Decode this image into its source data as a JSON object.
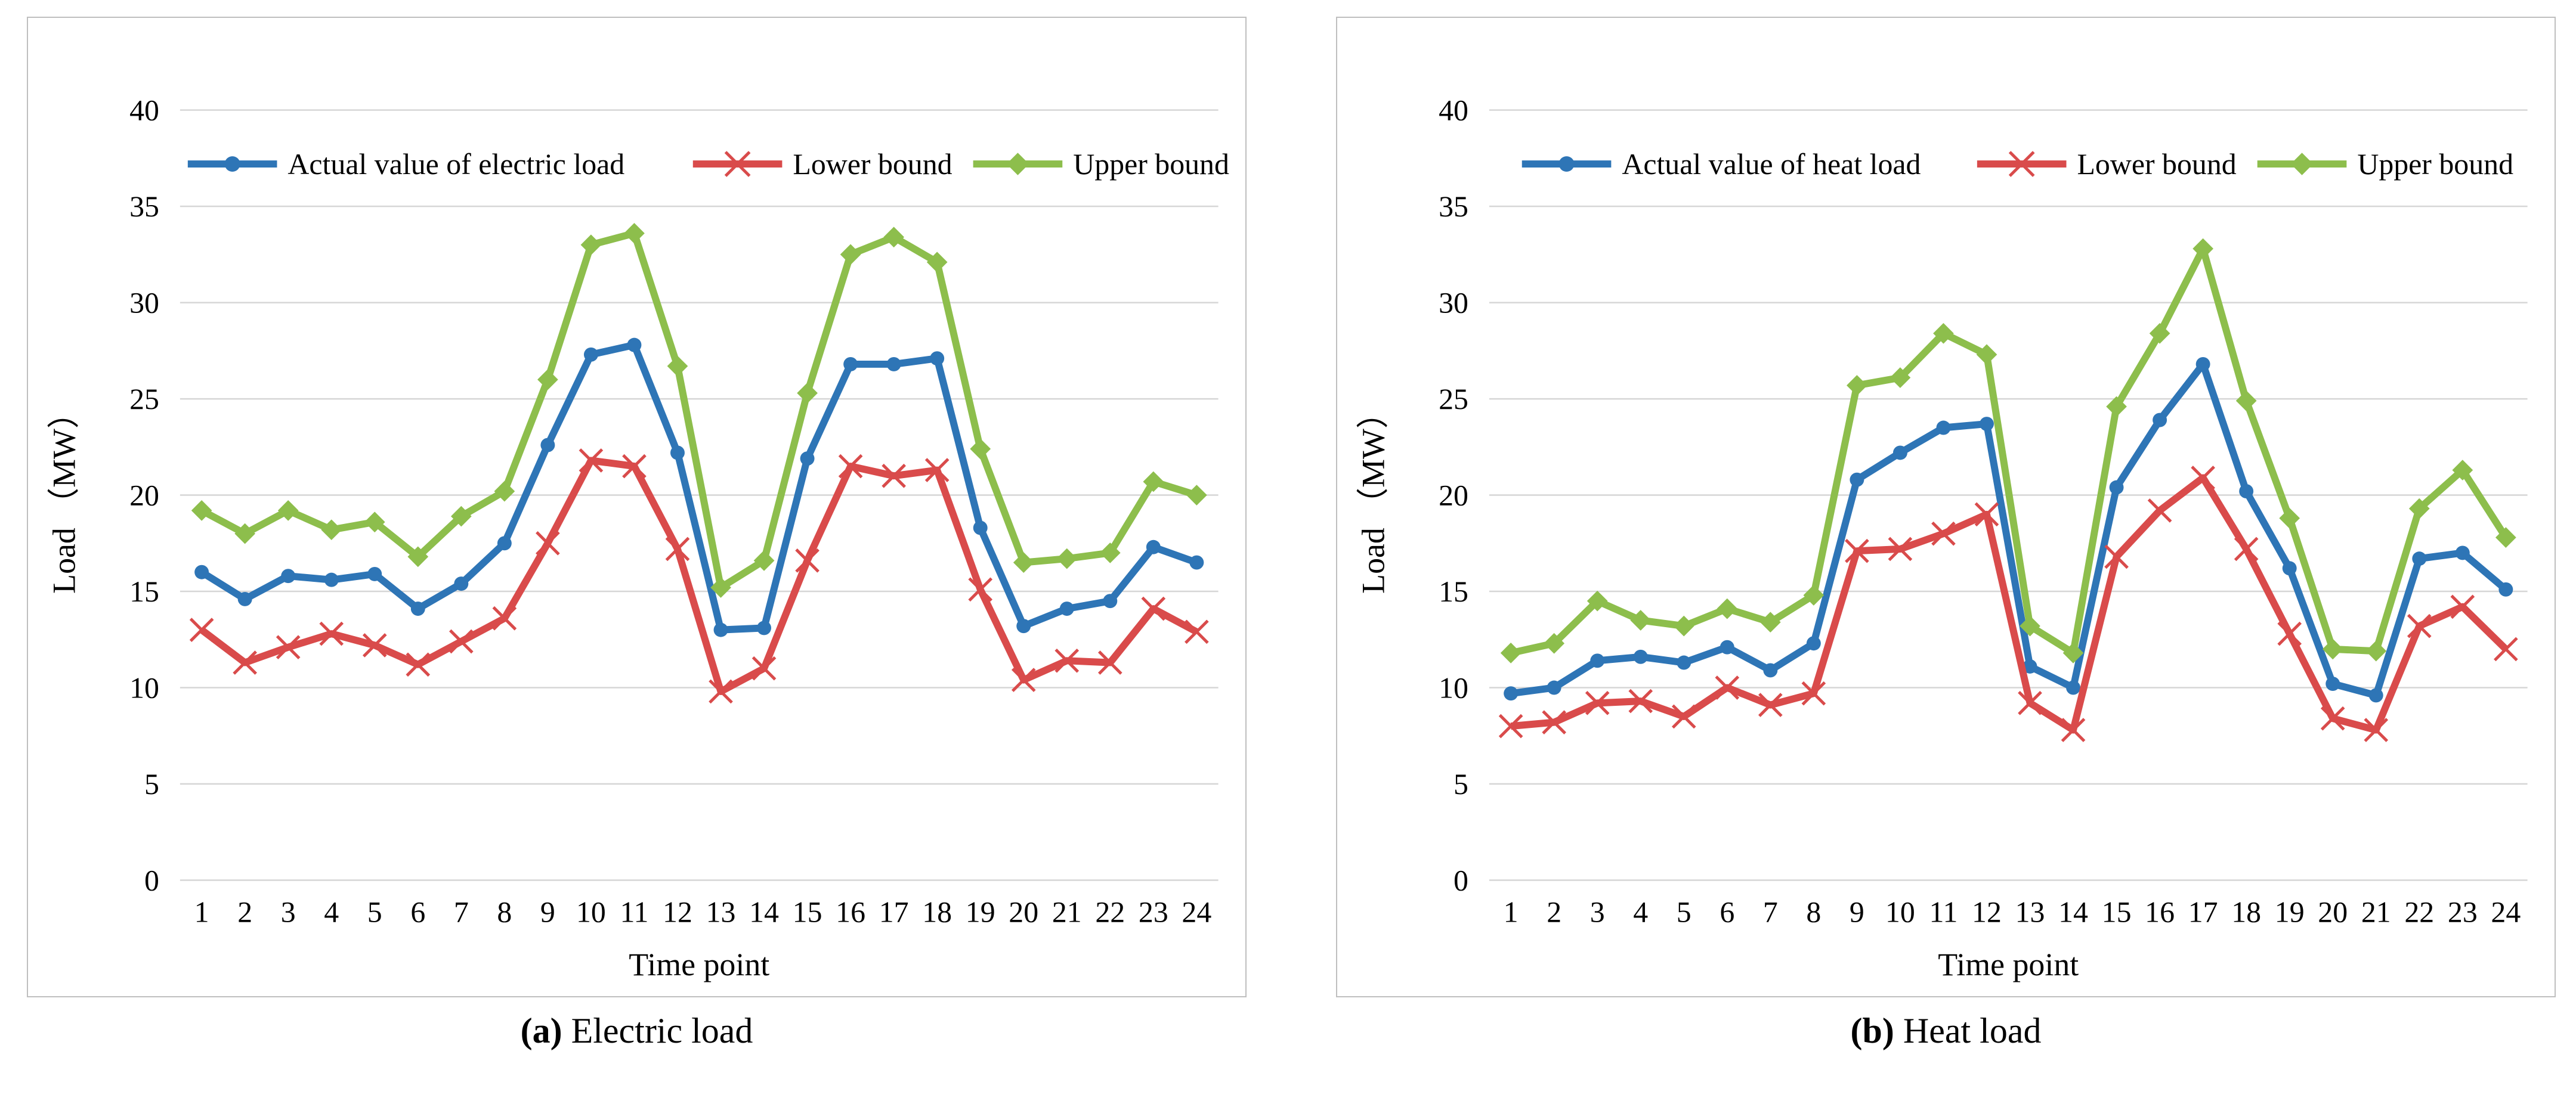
{
  "captions": [
    {
      "label": "(a)",
      "text": "Electric load"
    },
    {
      "label": "(b)",
      "text": "Heat load"
    }
  ],
  "chart_data": [
    {
      "type": "line",
      "title": "",
      "xlabel": "Time point",
      "ylabel": "Load （MW）",
      "ylim": [
        0,
        40
      ],
      "ytick_step": 5,
      "grid": "horizontal",
      "legend_position": "top-inside",
      "categories": [
        1,
        2,
        3,
        4,
        5,
        6,
        7,
        8,
        9,
        10,
        11,
        12,
        13,
        14,
        15,
        16,
        17,
        18,
        19,
        20,
        21,
        22,
        23,
        24
      ],
      "series": [
        {
          "name": "Actual value of electric load",
          "color": "#2E75B6",
          "marker": "circle",
          "values": [
            16.0,
            14.6,
            15.8,
            15.6,
            15.9,
            14.1,
            15.4,
            17.5,
            22.6,
            27.3,
            27.8,
            22.2,
            13.0,
            13.1,
            21.9,
            26.8,
            26.8,
            27.1,
            18.3,
            13.2,
            14.1,
            14.5,
            17.3,
            16.5
          ]
        },
        {
          "name": "Lower bound",
          "color": "#D94B4B",
          "marker": "x",
          "values": [
            13.0,
            11.3,
            12.1,
            12.8,
            12.2,
            11.2,
            12.4,
            13.6,
            17.5,
            21.8,
            21.5,
            17.2,
            9.8,
            11.0,
            16.6,
            21.5,
            21.0,
            21.3,
            15.1,
            10.4,
            11.4,
            11.3,
            14.1,
            12.9
          ]
        },
        {
          "name": "Upper bound",
          "color": "#8DBE4C",
          "marker": "diamond",
          "values": [
            19.2,
            18.0,
            19.2,
            18.2,
            18.6,
            16.8,
            18.9,
            20.2,
            26.0,
            33.0,
            33.6,
            26.7,
            15.2,
            16.6,
            25.3,
            32.5,
            33.4,
            32.1,
            22.4,
            16.5,
            16.7,
            17.0,
            20.7,
            20.0
          ]
        }
      ]
    },
    {
      "type": "line",
      "title": "",
      "xlabel": "Time point",
      "ylabel": "Load （MW）",
      "ylim": [
        0,
        40
      ],
      "ytick_step": 5,
      "grid": "horizontal",
      "legend_position": "top-inside",
      "categories": [
        1,
        2,
        3,
        4,
        5,
        6,
        7,
        8,
        9,
        10,
        11,
        12,
        13,
        14,
        15,
        16,
        17,
        18,
        19,
        20,
        21,
        22,
        23,
        24
      ],
      "series": [
        {
          "name": "Actual value of heat load",
          "color": "#2E75B6",
          "marker": "circle",
          "values": [
            9.7,
            10.0,
            11.4,
            11.6,
            11.3,
            12.1,
            10.9,
            12.3,
            20.8,
            22.2,
            23.5,
            23.7,
            11.1,
            10.0,
            20.4,
            23.9,
            26.8,
            20.2,
            16.2,
            10.2,
            9.6,
            16.7,
            17.0,
            15.1
          ]
        },
        {
          "name": "Lower bound",
          "color": "#D94B4B",
          "marker": "x",
          "values": [
            8.0,
            8.2,
            9.2,
            9.3,
            8.5,
            10.0,
            9.1,
            9.7,
            17.1,
            17.2,
            18.0,
            19.0,
            9.2,
            7.8,
            16.8,
            19.2,
            20.9,
            17.2,
            12.8,
            8.4,
            7.8,
            13.2,
            14.2,
            12.0
          ]
        },
        {
          "name": "Upper bound",
          "color": "#8DBE4C",
          "marker": "diamond",
          "values": [
            11.8,
            12.3,
            14.5,
            13.5,
            13.2,
            14.1,
            13.4,
            14.8,
            25.7,
            26.1,
            28.4,
            27.3,
            13.2,
            11.8,
            24.6,
            28.4,
            32.8,
            24.9,
            18.8,
            12.0,
            11.9,
            19.3,
            21.3,
            17.8
          ]
        }
      ]
    }
  ],
  "style_colors": {
    "gridline": "#D6D6D6",
    "panel_border": "#BFBFBF",
    "text": "#000000"
  }
}
